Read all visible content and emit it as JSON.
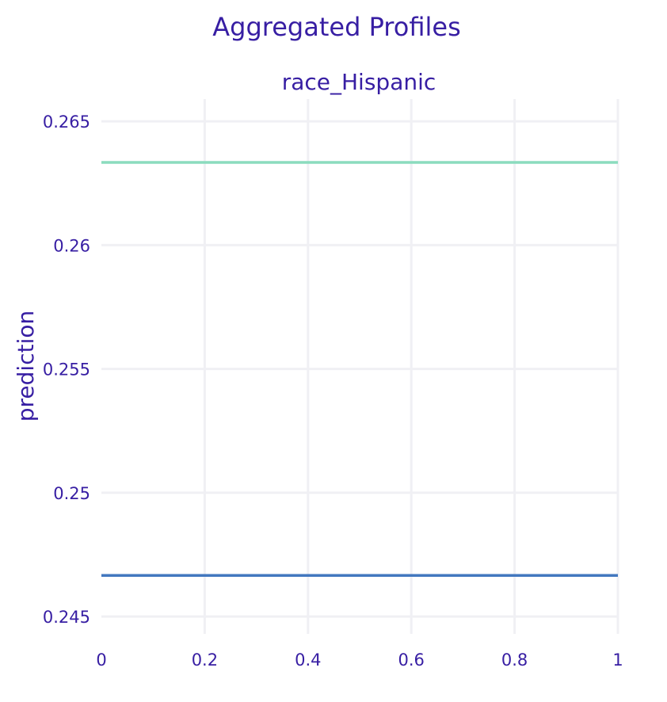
{
  "chart_data": {
    "type": "line",
    "title": "Aggregated Profiles",
    "subtitle": "race_Hispanic",
    "xlabel": "",
    "ylabel": "prediction",
    "xlim": [
      0,
      1
    ],
    "ylim": [
      0.2443,
      0.2659
    ],
    "x_ticks": [
      0,
      0.2,
      0.4,
      0.6,
      0.8,
      1
    ],
    "x_tick_labels": [
      "0",
      "0.2",
      "0.4",
      "0.6",
      "0.8",
      "1"
    ],
    "y_ticks": [
      0.245,
      0.25,
      0.255,
      0.26,
      0.265
    ],
    "y_tick_labels": [
      "0.245",
      "0.25",
      "0.255",
      "0.26",
      "0.265"
    ],
    "grid": true,
    "legend": "none",
    "series": [
      {
        "color": "#8bdcbe",
        "x": [
          0,
          1
        ],
        "y": [
          0.26334,
          0.26334
        ]
      },
      {
        "color": "#4378bf",
        "x": [
          0,
          1
        ],
        "y": [
          0.24666,
          0.24666
        ]
      }
    ]
  }
}
